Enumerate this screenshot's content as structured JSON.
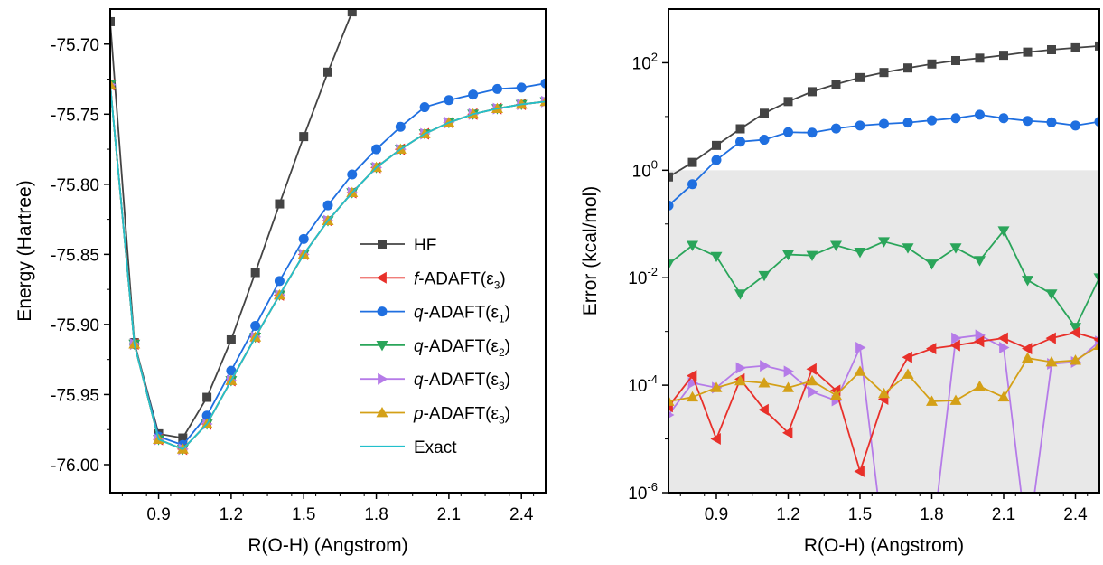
{
  "chart_data": [
    {
      "type": "line",
      "xlabel": "R(O-H) (Angstrom)",
      "ylabel": "Energy (Hartree)",
      "xlim": [
        0.7,
        2.5
      ],
      "ylim": [
        -76.02,
        -75.675
      ],
      "xticks": [
        0.9,
        1.2,
        1.5,
        1.8,
        2.1,
        2.4
      ],
      "xtick_labels": [
        "0.9",
        "1.2",
        "1.5",
        "1.8",
        "2.1",
        "2.4"
      ],
      "yticks": [
        -76.0,
        -75.95,
        -75.9,
        -75.85,
        -75.8,
        -75.75,
        -75.7
      ],
      "ytick_labels": [
        "-76.00",
        "-75.95",
        "-75.90",
        "-75.85",
        "-75.80",
        "-75.75",
        "-75.70"
      ],
      "grid": false,
      "legend_position": "center-right",
      "x": [
        0.7,
        0.8,
        0.9,
        1.0,
        1.1,
        1.2,
        1.3,
        1.4,
        1.5,
        1.6,
        1.7,
        1.8,
        1.9,
        2.0,
        2.1,
        2.2,
        2.3,
        2.4,
        2.5
      ],
      "series": [
        {
          "name": "HF",
          "color": "#444444",
          "marker": "square",
          "values": [
            -75.684,
            -75.913,
            -75.978,
            -75.981,
            -75.952,
            -75.911,
            -75.863,
            -75.814,
            -75.766,
            -75.72,
            -75.677,
            null,
            null,
            null,
            null,
            null,
            null,
            null,
            null
          ]
        },
        {
          "name": "q-ADAFT(ε1)",
          "name_prefix": "q",
          "name_main": "-ADAFT(ε",
          "name_sub": "1",
          "name_suffix": ")",
          "color": "#1f6fe0",
          "marker": "circle",
          "values": [
            -75.729,
            -75.914,
            -75.98,
            -75.986,
            -75.965,
            -75.933,
            -75.901,
            -75.869,
            -75.839,
            -75.815,
            -75.793,
            -75.775,
            -75.759,
            -75.745,
            -75.74,
            -75.736,
            -75.732,
            -75.731,
            -75.728
          ]
        },
        {
          "name": "f-ADAFT(ε3)",
          "name_prefix": "f",
          "name_main": "-ADAFT(ε",
          "name_sub": "3",
          "name_suffix": ")",
          "color": "#e8302a",
          "marker": "triangle-left",
          "values": [
            -75.729,
            -75.914,
            -75.982,
            -75.989,
            -75.971,
            -75.94,
            -75.909,
            -75.879,
            -75.85,
            -75.826,
            -75.806,
            -75.788,
            -75.775,
            -75.764,
            -75.756,
            -75.75,
            -75.746,
            -75.743,
            -75.741
          ]
        },
        {
          "name": "q-ADAFT(ε2)",
          "name_prefix": "q",
          "name_main": "-ADAFT(ε",
          "name_sub": "2",
          "name_suffix": ")",
          "color": "#2aa55a",
          "marker": "triangle-down",
          "values": [
            -75.729,
            -75.914,
            -75.982,
            -75.989,
            -75.971,
            -75.94,
            -75.909,
            -75.879,
            -75.85,
            -75.826,
            -75.806,
            -75.788,
            -75.775,
            -75.764,
            -75.756,
            -75.75,
            -75.746,
            -75.743,
            -75.741
          ]
        },
        {
          "name": "q-ADAFT(ε3)",
          "name_prefix": "q",
          "name_main": "-ADAFT(ε",
          "name_sub": "3",
          "name_suffix": ")",
          "color": "#b57be8",
          "marker": "triangle-right",
          "values": [
            -75.729,
            -75.914,
            -75.982,
            -75.989,
            -75.971,
            -75.94,
            -75.909,
            -75.879,
            -75.85,
            -75.826,
            -75.806,
            -75.788,
            -75.775,
            -75.764,
            -75.756,
            -75.75,
            -75.746,
            -75.743,
            -75.741
          ]
        },
        {
          "name": "p-ADAFT(ε3)",
          "name_prefix": "p",
          "name_main": "-ADAFT(ε",
          "name_sub": "3",
          "name_suffix": ")",
          "color": "#d4a017",
          "marker": "triangle-up",
          "values": [
            -75.729,
            -75.914,
            -75.982,
            -75.989,
            -75.971,
            -75.94,
            -75.909,
            -75.879,
            -75.85,
            -75.826,
            -75.806,
            -75.788,
            -75.775,
            -75.764,
            -75.756,
            -75.75,
            -75.746,
            -75.743,
            -75.741
          ]
        },
        {
          "name": "Exact",
          "color": "#22c0cc",
          "marker": "none",
          "values": [
            -75.729,
            -75.914,
            -75.982,
            -75.989,
            -75.971,
            -75.94,
            -75.909,
            -75.879,
            -75.85,
            -75.826,
            -75.806,
            -75.788,
            -75.775,
            -75.764,
            -75.756,
            -75.75,
            -75.746,
            -75.743,
            -75.741
          ]
        }
      ],
      "legend_order": [
        "HF",
        "f-ADAFT(ε3)",
        "q-ADAFT(ε1)",
        "q-ADAFT(ε2)",
        "q-ADAFT(ε3)",
        "p-ADAFT(ε3)",
        "Exact"
      ]
    },
    {
      "type": "line",
      "xlabel": "R(O-H) (Angstrom)",
      "ylabel": "Error (kcal/mol)",
      "xlim": [
        0.7,
        2.5
      ],
      "ylim": [
        1e-06,
        1000
      ],
      "yscale": "log",
      "shaded_region": {
        "y_from": 1e-06,
        "y_to": 1.0,
        "color": "#e8e8e8"
      },
      "xticks": [
        0.9,
        1.2,
        1.5,
        1.8,
        2.1,
        2.4
      ],
      "xtick_labels": [
        "0.9",
        "1.2",
        "1.5",
        "1.8",
        "2.1",
        "2.4"
      ],
      "yticks": [
        1e-06,
        0.0001,
        0.01,
        1,
        100
      ],
      "ytick_bases": [
        "10",
        "10",
        "10",
        "10",
        "10"
      ],
      "ytick_exponents": [
        "-6",
        "-4",
        "-2",
        "0",
        "2"
      ],
      "grid": false,
      "x": [
        0.7,
        0.8,
        0.9,
        1.0,
        1.1,
        1.2,
        1.3,
        1.4,
        1.5,
        1.6,
        1.7,
        1.8,
        1.9,
        2.0,
        2.1,
        2.2,
        2.3,
        2.4,
        2.5
      ],
      "series": [
        {
          "name": "HF",
          "color": "#444444",
          "marker": "square",
          "values": [
            0.75,
            1.4,
            2.9,
            5.9,
            11.5,
            19,
            29,
            40,
            53,
            66,
            80,
            95,
            110,
            122,
            138,
            158,
            175,
            190,
            205
          ]
        },
        {
          "name": "q-ADAFT(ε1)",
          "color": "#1f6fe0",
          "marker": "circle",
          "values": [
            0.22,
            0.55,
            1.55,
            3.4,
            3.7,
            5.1,
            5.0,
            6.0,
            6.8,
            7.3,
            7.7,
            8.5,
            9.3,
            10.8,
            9.3,
            8.3,
            7.8,
            6.8,
            8.0
          ]
        },
        {
          "name": "q-ADAFT(ε2)",
          "color": "#2aa55a",
          "marker": "triangle-down",
          "values": [
            0.018,
            0.04,
            0.025,
            0.005,
            0.011,
            0.027,
            0.026,
            0.04,
            0.03,
            0.047,
            0.036,
            0.018,
            0.036,
            0.021,
            0.075,
            0.009,
            0.005,
            0.0012,
            0.01
          ]
        },
        {
          "name": "f-ADAFT(ε3)",
          "color": "#e8302a",
          "marker": "triangle-left",
          "values": [
            4e-05,
            0.00015,
            1e-05,
            0.00013,
            3.5e-05,
            1.3e-05,
            0.0002,
            8e-05,
            2.5e-06,
            5.5e-05,
            0.00033,
            0.00048,
            0.00055,
            0.00065,
            0.00075,
            0.00048,
            0.00075,
            0.00095,
            0.0007
          ]
        },
        {
          "name": "q-ADAFT(ε3)",
          "color": "#b57be8",
          "marker": "triangle-right",
          "values": [
            2.8e-05,
            0.00011,
            9e-05,
            0.00021,
            0.00023,
            0.00018,
            7.5e-05,
            5.2e-05,
            0.0005,
            1e-07,
            null,
            1e-07,
            0.00075,
            0.00085,
            0.0005,
            1e-07,
            0.00025,
            0.00027,
            0.00065
          ]
        },
        {
          "name": "p-ADAFT(ε3)",
          "color": "#d4a017",
          "marker": "triangle-up",
          "values": [
            5e-05,
            6e-05,
            9e-05,
            0.00012,
            0.00011,
            9e-05,
            0.00012,
            6.5e-05,
            0.00018,
            7e-05,
            0.00016,
            5e-05,
            5.2e-05,
            9.5e-05,
            6e-05,
            0.00032,
            0.00027,
            0.00029,
            0.00055
          ]
        }
      ]
    }
  ]
}
